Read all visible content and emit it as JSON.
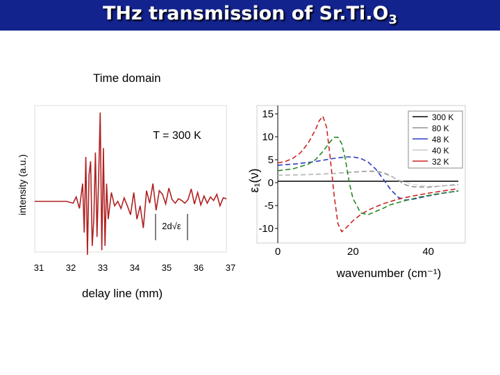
{
  "slide": {
    "title_main": "THz transmission of Sr.Ti.O",
    "title_sub": "3",
    "accent_color": "#12238e"
  },
  "chart_data": [
    {
      "type": "line",
      "title": "Time domain",
      "xlabel": "delay line (mm)",
      "ylabel": "intensity (a.u.)",
      "x_ticks": [
        "31",
        "32",
        "33",
        "34",
        "35",
        "36",
        "37"
      ],
      "xlim": [
        31,
        37
      ],
      "annotation": "T = 300 K",
      "formula_label": "2d√ε",
      "series": [
        {
          "color": "#b02020",
          "x": [
            31.0,
            32.0,
            32.2,
            32.3,
            32.4,
            32.5,
            32.55,
            32.6,
            32.65,
            32.7,
            32.75,
            32.8,
            32.85,
            32.9,
            32.95,
            33.0,
            33.05,
            33.1,
            33.15,
            33.2,
            33.25,
            33.3,
            33.4,
            33.5,
            33.6,
            33.7,
            33.8,
            33.9,
            34.0,
            34.1,
            34.2,
            34.3,
            34.4,
            34.5,
            34.6,
            34.7,
            34.8,
            34.9,
            35.0,
            35.1,
            35.2,
            35.3,
            35.4,
            35.5,
            35.6,
            35.7,
            35.8,
            35.9,
            36.0,
            36.1,
            36.2,
            36.3,
            36.4,
            36.5,
            36.6,
            36.7,
            36.8,
            36.9,
            37.0
          ],
          "y": [
            0.0,
            0.0,
            -0.02,
            0.05,
            -0.08,
            0.2,
            -0.35,
            0.5,
            -0.6,
            0.3,
            0.45,
            -0.5,
            -0.2,
            0.55,
            -0.4,
            0.25,
            1.0,
            -0.55,
            0.6,
            -0.5,
            0.2,
            -0.2,
            0.1,
            -0.05,
            0.0,
            -0.08,
            0.04,
            -0.05,
            -0.15,
            0.1,
            -0.2,
            -0.05,
            -0.3,
            0.12,
            -0.02,
            0.2,
            -0.1,
            0.12,
            0.08,
            -0.03,
            0.15,
            0.02,
            -0.02,
            0.03,
            0.01,
            -0.02,
            0.02,
            0.14,
            -0.03,
            0.1,
            -0.04,
            0.06,
            -0.02,
            0.05,
            0.01,
            0.08,
            -0.05,
            0.04,
            0.03
          ]
        }
      ]
    },
    {
      "type": "line",
      "xlabel": "wavenumber (cm⁻¹)",
      "ylabel": "ε₁(ν)",
      "xlim": [
        0,
        48
      ],
      "ylim": [
        -12,
        16
      ],
      "x_ticks": [
        "0",
        "20",
        "40"
      ],
      "x_tick_values": [
        0,
        20,
        40
      ],
      "y_ticks": [
        "15",
        "10",
        "5",
        "0",
        "-5",
        "-10"
      ],
      "y_tick_values": [
        15,
        10,
        5,
        0,
        -5,
        -10
      ],
      "legend_position": "top-right",
      "series": [
        {
          "name": "300 K",
          "color": "#000000",
          "x": [
            0,
            48
          ],
          "y": [
            0.3,
            0.3
          ]
        },
        {
          "name": "80 K",
          "color": "#909090",
          "x": [
            0,
            5,
            10,
            15,
            20,
            24,
            26,
            28,
            30,
            32,
            34,
            36,
            40,
            44,
            48
          ],
          "y": [
            1.6,
            1.7,
            1.8,
            2.0,
            2.3,
            2.5,
            2.5,
            2.2,
            1.5,
            0.5,
            -0.5,
            -0.9,
            -1.0,
            -0.7,
            -0.4
          ]
        },
        {
          "name": "48 K",
          "color": "#2a3bc0",
          "x": [
            0,
            5,
            10,
            15,
            18,
            20,
            22,
            24,
            26,
            28,
            30,
            32,
            34,
            36,
            40,
            44,
            48
          ],
          "y": [
            3.8,
            4.1,
            4.6,
            5.3,
            5.6,
            5.6,
            5.3,
            4.5,
            3.0,
            0.8,
            -1.5,
            -3.2,
            -3.8,
            -3.6,
            -2.9,
            -2.3,
            -1.8
          ]
        },
        {
          "name": "40 K",
          "color": "#c8c8c8",
          "x": [
            0,
            10,
            20,
            24,
            26,
            28,
            30,
            32,
            36,
            40,
            48
          ],
          "y": [
            1.6,
            1.8,
            2.2,
            2.4,
            2.3,
            2.0,
            1.4,
            0.6,
            -0.4,
            -0.8,
            -0.6
          ]
        },
        {
          "name": "32 K",
          "color": "#cc2222",
          "x": [
            0,
            2,
            4,
            6,
            8,
            10,
            11,
            12,
            13,
            14,
            15,
            16,
            17,
            18,
            20,
            22,
            24,
            28,
            32,
            36,
            40,
            44,
            48
          ],
          "y": [
            4.3,
            4.6,
            5.3,
            6.5,
            8.5,
            11.5,
            13.5,
            14.5,
            12.0,
            5.0,
            -3.0,
            -9.0,
            -10.7,
            -10.0,
            -8.3,
            -7.0,
            -6.0,
            -4.6,
            -3.6,
            -2.9,
            -2.3,
            -1.8,
            -1.3
          ]
        },
        {
          "name": "",
          "color": "#228822",
          "x": [
            0,
            4,
            8,
            10,
            12,
            14,
            15,
            16,
            17,
            18,
            19,
            20,
            21,
            22,
            24,
            26,
            28,
            30,
            34,
            38,
            42,
            48
          ],
          "y": [
            2.6,
            3.0,
            4.0,
            5.0,
            6.8,
            9.0,
            9.9,
            9.9,
            8.5,
            5.0,
            0.0,
            -3.5,
            -5.0,
            -6.6,
            -7.0,
            -6.3,
            -5.6,
            -4.8,
            -3.9,
            -3.1,
            -2.5,
            -1.8
          ]
        }
      ]
    }
  ]
}
